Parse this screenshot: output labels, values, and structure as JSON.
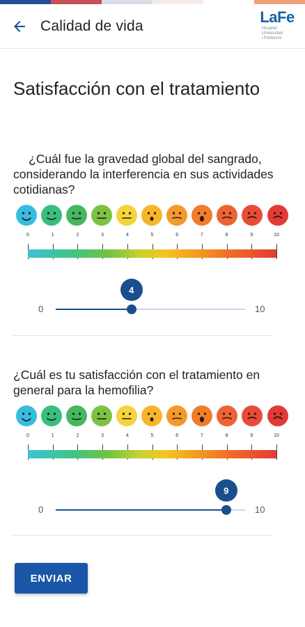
{
  "colors": {
    "stripe": [
      "#1f4f93",
      "#c84f56",
      "#d8dde6",
      "#f5ece8",
      "#ffffff",
      "#f0a07a"
    ],
    "primary": "#1a57a8",
    "slider": "#1a4f8f"
  },
  "appbar": {
    "title": "Calidad de vida",
    "back_icon": "arrow-left-icon",
    "logo": {
      "la": "La",
      "fe": "Fe",
      "lines": [
        "Hospital",
        "Universitari",
        "i Politècnic"
      ]
    }
  },
  "page": {
    "title": "Satisfacción con el tratamiento"
  },
  "scale_labels": [
    "0",
    "1",
    "2",
    "3",
    "4",
    "5",
    "6",
    "7",
    "8",
    "9",
    "10"
  ],
  "face_colors": [
    "#37bde0",
    "#37bf7e",
    "#44b760",
    "#7cc243",
    "#f5d33c",
    "#f8b52a",
    "#f39a2a",
    "#f07d2a",
    "#ee6332",
    "#e94b37",
    "#e23a36"
  ],
  "questions": [
    {
      "text": "¿Cuál fue la gravedad global del sangrado, considerando la interferencia en sus actividades cotidianas?",
      "slider": {
        "min_label": "0",
        "max_label": "10",
        "min": 0,
        "max": 10,
        "value": 4,
        "value_label": "4"
      }
    },
    {
      "text": "¿Cuál es tu satisfacción con el tratamiento en general para la hemofilia?",
      "slider": {
        "min_label": "0",
        "max_label": "10",
        "min": 0,
        "max": 10,
        "value": 9,
        "value_label": "9"
      }
    }
  ],
  "submit_label": "ENVIAR"
}
